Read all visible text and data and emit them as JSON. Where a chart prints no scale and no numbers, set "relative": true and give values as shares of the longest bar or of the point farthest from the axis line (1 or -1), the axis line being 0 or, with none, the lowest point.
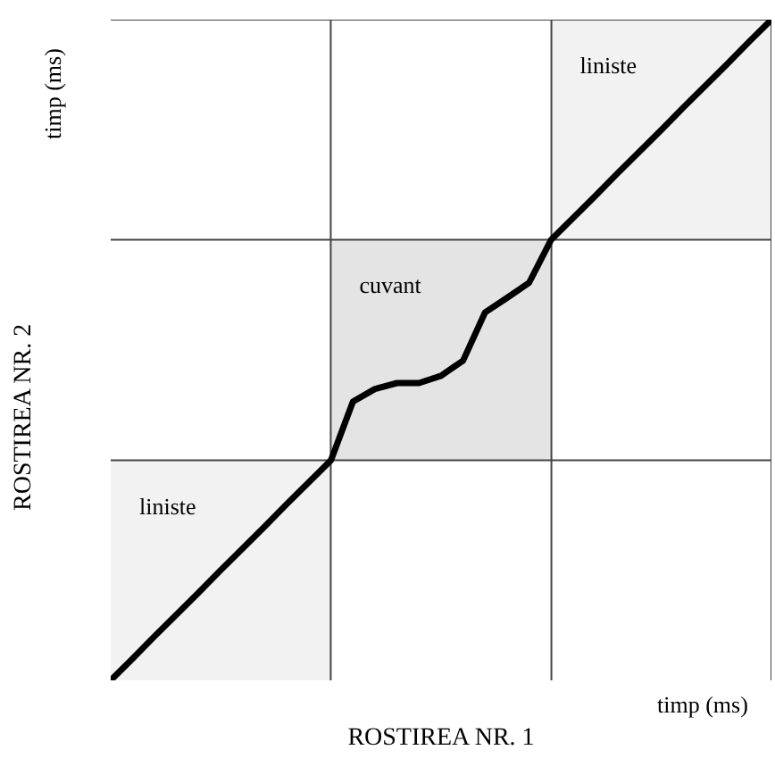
{
  "chart_data": {
    "type": "line",
    "relative": true,
    "xlabel": "ROSTIREA NR. 1",
    "ylabel": "ROSTIREA NR. 2",
    "categories": [
      null,
      null,
      null,
      null,
      null,
      null,
      null,
      null,
      null,
      null,
      null,
      null,
      null,
      null,
      null,
      null,
      null,
      null,
      null,
      null,
      null,
      null,
      null,
      null,
      null,
      null,
      null,
      null,
      null,
      null,
      null
    ],
    "series": [
      {
        "color": "#000000",
        "values": [
          0,
          0.033,
          0.067,
          0.1,
          0.133,
          0.167,
          0.2,
          0.233,
          0.267,
          0.3,
          0.333,
          0.422,
          0.441,
          0.45,
          0.45,
          0.461,
          0.484,
          0.557,
          0.579,
          0.602,
          0.667,
          0.7,
          0.733,
          0.767,
          0.8,
          0.833,
          0.867,
          0.9,
          0.933,
          0.967,
          1
        ]
      }
    ],
    "bands": [
      {
        "axis": "y",
        "from": 0,
        "to": 0.333,
        "label": "liniste",
        "color": "#f2f2f2"
      },
      {
        "axis": "y",
        "from": 0.333,
        "to": 0.667,
        "label": "cuvant",
        "color": "#e4e4e4"
      },
      {
        "axis": "y",
        "from": 0.667,
        "to": 1,
        "label": "liniste",
        "color": "#f2f2f2"
      }
    ],
    "ref_lines": [
      {
        "axis": "y",
        "value": 0.333
      },
      {
        "axis": "y",
        "value": 0.667
      }
    ],
    "annotations": [
      "timp (ms)",
      "timp (ms)"
    ],
    "marker": "none",
    "line_style": "solid"
  }
}
